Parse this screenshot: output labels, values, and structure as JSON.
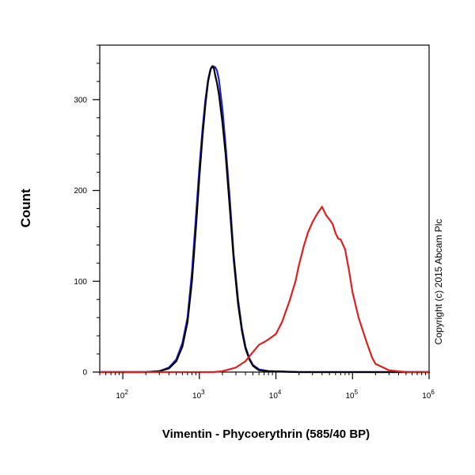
{
  "chart_data": {
    "type": "line",
    "xlabel": "Vimentin - Phycoerythrin (585/40 BP)",
    "ylabel": "Count",
    "x_scale": "log",
    "xlim": [
      50,
      1000000
    ],
    "ylim": [
      0,
      360
    ],
    "x_ticks": [
      {
        "value": 100,
        "base": "10",
        "exp": "2"
      },
      {
        "value": 1000,
        "base": "10",
        "exp": "3"
      },
      {
        "value": 10000,
        "base": "10",
        "exp": "4"
      },
      {
        "value": 100000,
        "base": "10",
        "exp": "5"
      },
      {
        "value": 1000000,
        "base": "10",
        "exp": "6"
      }
    ],
    "y_ticks": [
      {
        "value": 0,
        "label": "0"
      },
      {
        "value": 100,
        "label": "100"
      },
      {
        "value": 200,
        "label": "200"
      },
      {
        "value": 300,
        "label": "300"
      }
    ],
    "grid": false,
    "legend": "none",
    "annotation": "Copyright (c) 2015 Abcam Plc",
    "series": [
      {
        "color": "#2222dd",
        "x": [
          50,
          200,
          300,
          400,
          500,
          600,
          700,
          800,
          900,
          1000,
          1100,
          1200,
          1300,
          1400,
          1500,
          1600,
          1700,
          1800,
          2000,
          2200,
          2500,
          2800,
          3200,
          3600,
          4000,
          4500,
          5000,
          6000,
          8000,
          20000,
          1000000
        ],
        "y": [
          0,
          0,
          1,
          5,
          14,
          32,
          60,
          110,
          170,
          225,
          268,
          300,
          322,
          334,
          336,
          336,
          332,
          322,
          290,
          250,
          190,
          130,
          80,
          48,
          28,
          15,
          8,
          3,
          1,
          0,
          0
        ]
      },
      {
        "color": "#000000",
        "x": [
          50,
          200,
          300,
          400,
          500,
          600,
          700,
          800,
          900,
          1000,
          1100,
          1200,
          1300,
          1400,
          1450,
          1500,
          1550,
          1600,
          1700,
          1800,
          2000,
          2200,
          2500,
          2800,
          3200,
          3600,
          4000,
          4500,
          5000,
          6000,
          8000,
          20000,
          1000000
        ],
        "y": [
          0,
          0,
          1,
          4,
          12,
          28,
          55,
          100,
          158,
          215,
          260,
          295,
          320,
          333,
          336,
          337,
          334,
          328,
          318,
          306,
          275,
          240,
          180,
          125,
          75,
          45,
          26,
          14,
          7,
          2,
          1,
          0,
          0
        ]
      },
      {
        "color": "#e02020",
        "x": [
          50,
          1500,
          2000,
          3000,
          4000,
          5000,
          6000,
          7000,
          8000,
          10000,
          12000,
          15000,
          18000,
          20000,
          23000,
          26000,
          30000,
          35000,
          40000,
          45000,
          50000,
          55000,
          60000,
          65000,
          70000,
          80000,
          90000,
          100000,
          120000,
          150000,
          180000,
          200000,
          300000,
          500000,
          1000000
        ],
        "y": [
          0,
          0,
          1,
          5,
          12,
          22,
          30,
          33,
          36,
          42,
          55,
          78,
          100,
          118,
          138,
          153,
          165,
          175,
          182,
          173,
          168,
          163,
          153,
          147,
          146,
          135,
          112,
          88,
          60,
          35,
          16,
          9,
          2,
          0,
          0
        ]
      }
    ]
  }
}
